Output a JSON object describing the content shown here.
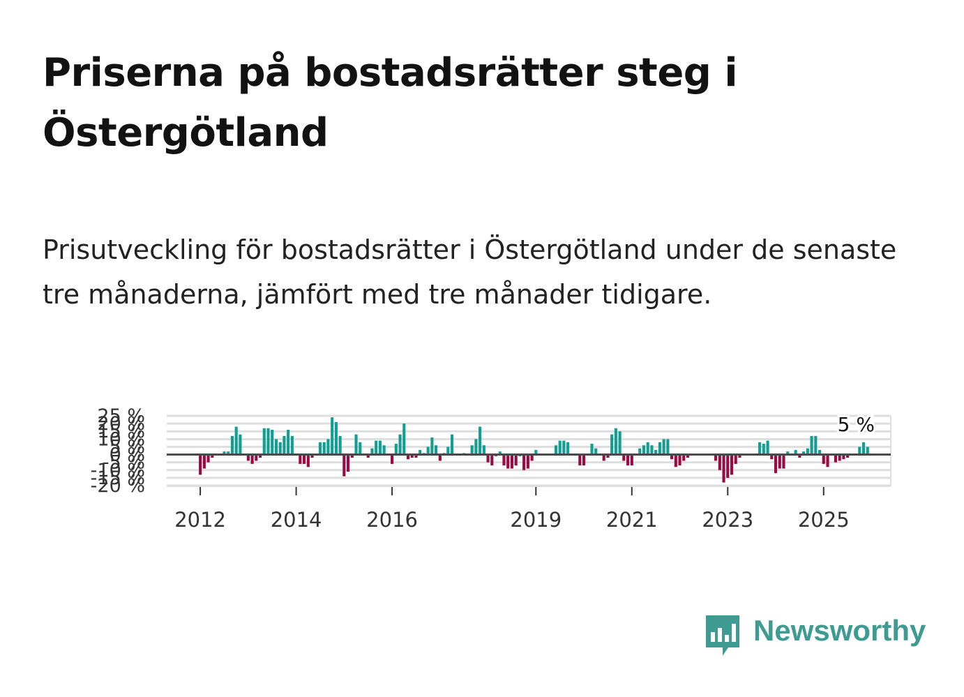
{
  "title": "Priserna på bostadsrätter steg i Östergötland",
  "subtitle": "Prisutveckling för bostadsrätter i Östergötland under de senaste tre månaderna, jämfört med tre månader tidigare.",
  "brand": {
    "name": "Newsworthy",
    "color": "#3d9b91"
  },
  "colors": {
    "positive": "#129e93",
    "negative": "#9b0a43",
    "grid": "#dedede",
    "zero": "#4a4a4a"
  },
  "chart_data": {
    "type": "bar",
    "title": "",
    "xlabel": "",
    "ylabel": "",
    "ylim": [
      -20,
      25
    ],
    "y_ticks": [
      25,
      20,
      15,
      10,
      5,
      0,
      -5,
      -10,
      -15,
      -20
    ],
    "y_tick_labels": [
      "25 %",
      "20 %",
      "15 %",
      "10 %",
      "5 %",
      "0 %",
      "-5 %",
      "-10 %",
      "-15 %",
      "-20 %"
    ],
    "x_ticks": [
      2012,
      2014,
      2016,
      2019,
      2021,
      2023,
      2025
    ],
    "x_range": [
      2011.3,
      2026.4
    ],
    "start": [
      2012,
      1
    ],
    "last_value_label": "5 %",
    "values": [
      -13,
      -9,
      -5,
      -2,
      0,
      0,
      2,
      2,
      12,
      18,
      13,
      0,
      -4,
      -6,
      -4,
      -2,
      17,
      17,
      16,
      10,
      8,
      12,
      16,
      12,
      0,
      -6,
      -6,
      -8,
      -2,
      0,
      8,
      8,
      10,
      24,
      21,
      12,
      -14,
      -11,
      -2,
      13,
      8,
      0,
      -2,
      4,
      9,
      9,
      6,
      0,
      -6,
      7,
      13,
      20,
      -3,
      -2,
      -2,
      3,
      1,
      5,
      11,
      6,
      -4,
      1,
      5,
      13,
      0,
      0,
      1,
      0,
      6,
      10,
      18,
      6,
      -5,
      -7,
      -1,
      2,
      -7,
      -9,
      -9,
      -7,
      -1,
      -10,
      -9,
      -4,
      3,
      0,
      0,
      0,
      0,
      6,
      9,
      9,
      8,
      0,
      0,
      -7,
      -7,
      0,
      7,
      4,
      0,
      -4,
      -2,
      13,
      17,
      15,
      -4,
      -7,
      -7,
      0,
      4,
      6,
      8,
      6,
      3,
      8,
      10,
      10,
      -3,
      -8,
      -7,
      -4,
      -2,
      0,
      0,
      0,
      0,
      0,
      0,
      -4,
      -10,
      -18,
      -15,
      -13,
      -6,
      -2,
      0,
      0,
      0,
      0,
      8,
      7,
      9,
      -3,
      -12,
      -9,
      -9,
      2,
      0,
      3,
      -2,
      2,
      4,
      12,
      12,
      3,
      -6,
      -8,
      0,
      -5,
      -4,
      -3,
      -2,
      0,
      0,
      5,
      8,
      5
    ]
  }
}
